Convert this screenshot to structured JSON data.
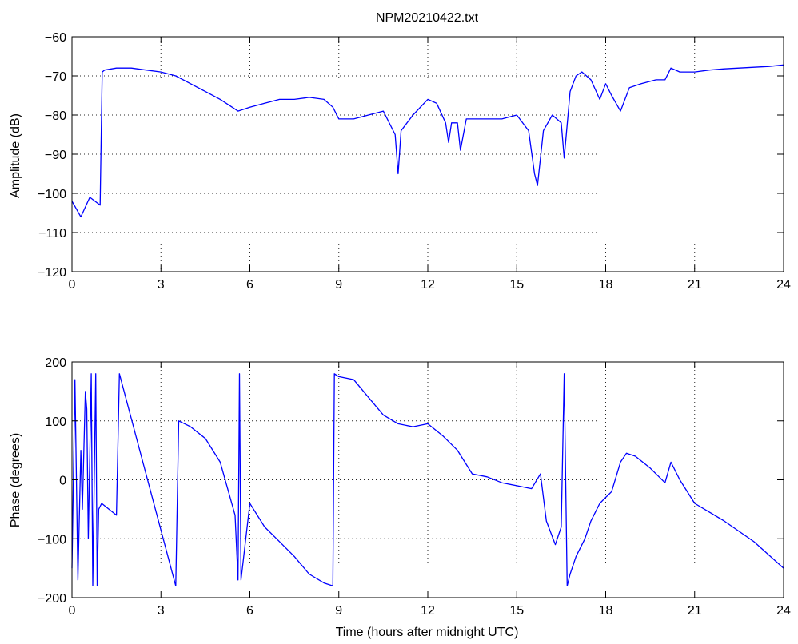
{
  "chart_data": [
    {
      "type": "line",
      "title": "NPM20210422.txt",
      "xlabel": "",
      "ylabel": "Amplitude (dB)",
      "xlim": [
        0,
        24
      ],
      "ylim": [
        -120,
        -60
      ],
      "xticks": [
        "0",
        "3",
        "6",
        "9",
        "12",
        "15",
        "18",
        "21",
        "24"
      ],
      "yticks": [
        "−60",
        "−70",
        "−80",
        "−90",
        "−100",
        "−110",
        "−120"
      ],
      "grid": true,
      "color": "#0000ff",
      "x": [
        0,
        0.3,
        0.6,
        0.95,
        1.02,
        1.1,
        1.5,
        2.0,
        2.5,
        3.0,
        3.5,
        4.0,
        4.5,
        5.0,
        5.6,
        6.0,
        6.5,
        7.0,
        7.5,
        8.0,
        8.5,
        8.8,
        9.0,
        9.5,
        10.0,
        10.5,
        10.9,
        11.0,
        11.1,
        11.5,
        12.0,
        12.3,
        12.6,
        12.7,
        12.8,
        13.0,
        13.1,
        13.3,
        13.8,
        14.5,
        15.0,
        15.4,
        15.6,
        15.7,
        15.9,
        16.2,
        16.5,
        16.6,
        16.8,
        17.0,
        17.2,
        17.5,
        17.8,
        18.0,
        18.2,
        18.5,
        18.8,
        19.2,
        19.7,
        20.0,
        20.2,
        20.5,
        21.0,
        21.5,
        22.0,
        22.5,
        23.0,
        23.5,
        24.0
      ],
      "values": [
        -102,
        -106,
        -101,
        -103,
        -69,
        -68.5,
        -68,
        -68,
        -68.5,
        -69,
        -70,
        -72,
        -74,
        -76,
        -79,
        -78,
        -77,
        -76,
        -76,
        -75.5,
        -76,
        -78,
        -81,
        -81,
        -80,
        -79,
        -85,
        -95,
        -84,
        -80,
        -76,
        -77,
        -82,
        -87,
        -82,
        -82,
        -89,
        -81,
        -81,
        -81,
        -80,
        -84,
        -95,
        -98,
        -84,
        -80,
        -82,
        -91,
        -74,
        -70,
        -69,
        -71,
        -76,
        -72,
        -75,
        -79,
        -73,
        -72,
        -71,
        -71,
        -68,
        -69,
        -69,
        -68.5,
        -68.2,
        -68,
        -67.8,
        -67.6,
        -67.2
      ]
    },
    {
      "type": "line",
      "title": "",
      "xlabel": "Time (hours after midnight UTC)",
      "ylabel": "Phase (degrees)",
      "xlim": [
        0,
        24
      ],
      "ylim": [
        -200,
        200
      ],
      "xticks": [
        "0",
        "3",
        "6",
        "9",
        "12",
        "15",
        "18",
        "21",
        "24"
      ],
      "yticks": [
        "200",
        "100",
        "0",
        "−100",
        "−200"
      ],
      "grid": true,
      "color": "#0000ff",
      "x": [
        0,
        0.1,
        0.2,
        0.3,
        0.35,
        0.45,
        0.5,
        0.55,
        0.65,
        0.7,
        0.8,
        0.85,
        0.9,
        1.0,
        1.5,
        1.6,
        3.5,
        3.6,
        4.0,
        4.5,
        5.0,
        5.5,
        5.6,
        5.65,
        5.7,
        6.0,
        6.5,
        7.0,
        7.5,
        8.0,
        8.5,
        8.8,
        8.85,
        9.0,
        9.5,
        10.0,
        10.5,
        11.0,
        11.5,
        12.0,
        12.5,
        13.0,
        13.5,
        14.0,
        14.5,
        15.0,
        15.5,
        15.8,
        16.0,
        16.3,
        16.5,
        16.6,
        16.7,
        16.8,
        17.0,
        17.3,
        17.5,
        17.8,
        18.0,
        18.2,
        18.5,
        18.7,
        19.0,
        19.5,
        20.0,
        20.2,
        20.5,
        21.0,
        22.0,
        23.0,
        24.0
      ],
      "values": [
        -150,
        170,
        -170,
        50,
        -50,
        150,
        120,
        -100,
        180,
        -180,
        180,
        -180,
        -50,
        -40,
        -60,
        180,
        -180,
        100,
        90,
        70,
        30,
        -60,
        -170,
        180,
        -170,
        -40,
        -80,
        -105,
        -130,
        -160,
        -175,
        -180,
        180,
        175,
        170,
        140,
        110,
        95,
        90,
        95,
        75,
        50,
        10,
        5,
        -5,
        -10,
        -15,
        10,
        -70,
        -110,
        -80,
        180,
        -180,
        -160,
        -130,
        -100,
        -70,
        -40,
        -30,
        -20,
        30,
        45,
        40,
        20,
        -5,
        30,
        0,
        -40,
        -70,
        -105,
        -150
      ]
    }
  ]
}
